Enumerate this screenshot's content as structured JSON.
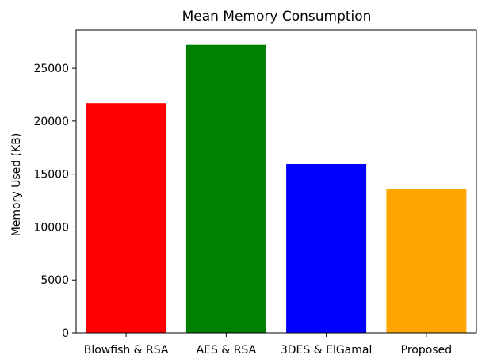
{
  "chart_data": {
    "type": "bar",
    "title": "Mean Memory Consumption",
    "xlabel": "",
    "ylabel": "Memory Used (KB)",
    "categories": [
      "Blowfish & RSA",
      "AES & RSA",
      "3DES & ElGamal",
      "Proposed"
    ],
    "values": [
      21700,
      27200,
      15950,
      13580
    ],
    "colors": [
      "#ff0000",
      "#008000",
      "#0000ff",
      "#ffa500"
    ],
    "ylim": [
      0,
      28600
    ],
    "yticks": [
      0,
      5000,
      10000,
      15000,
      20000,
      25000
    ],
    "grid": false
  }
}
